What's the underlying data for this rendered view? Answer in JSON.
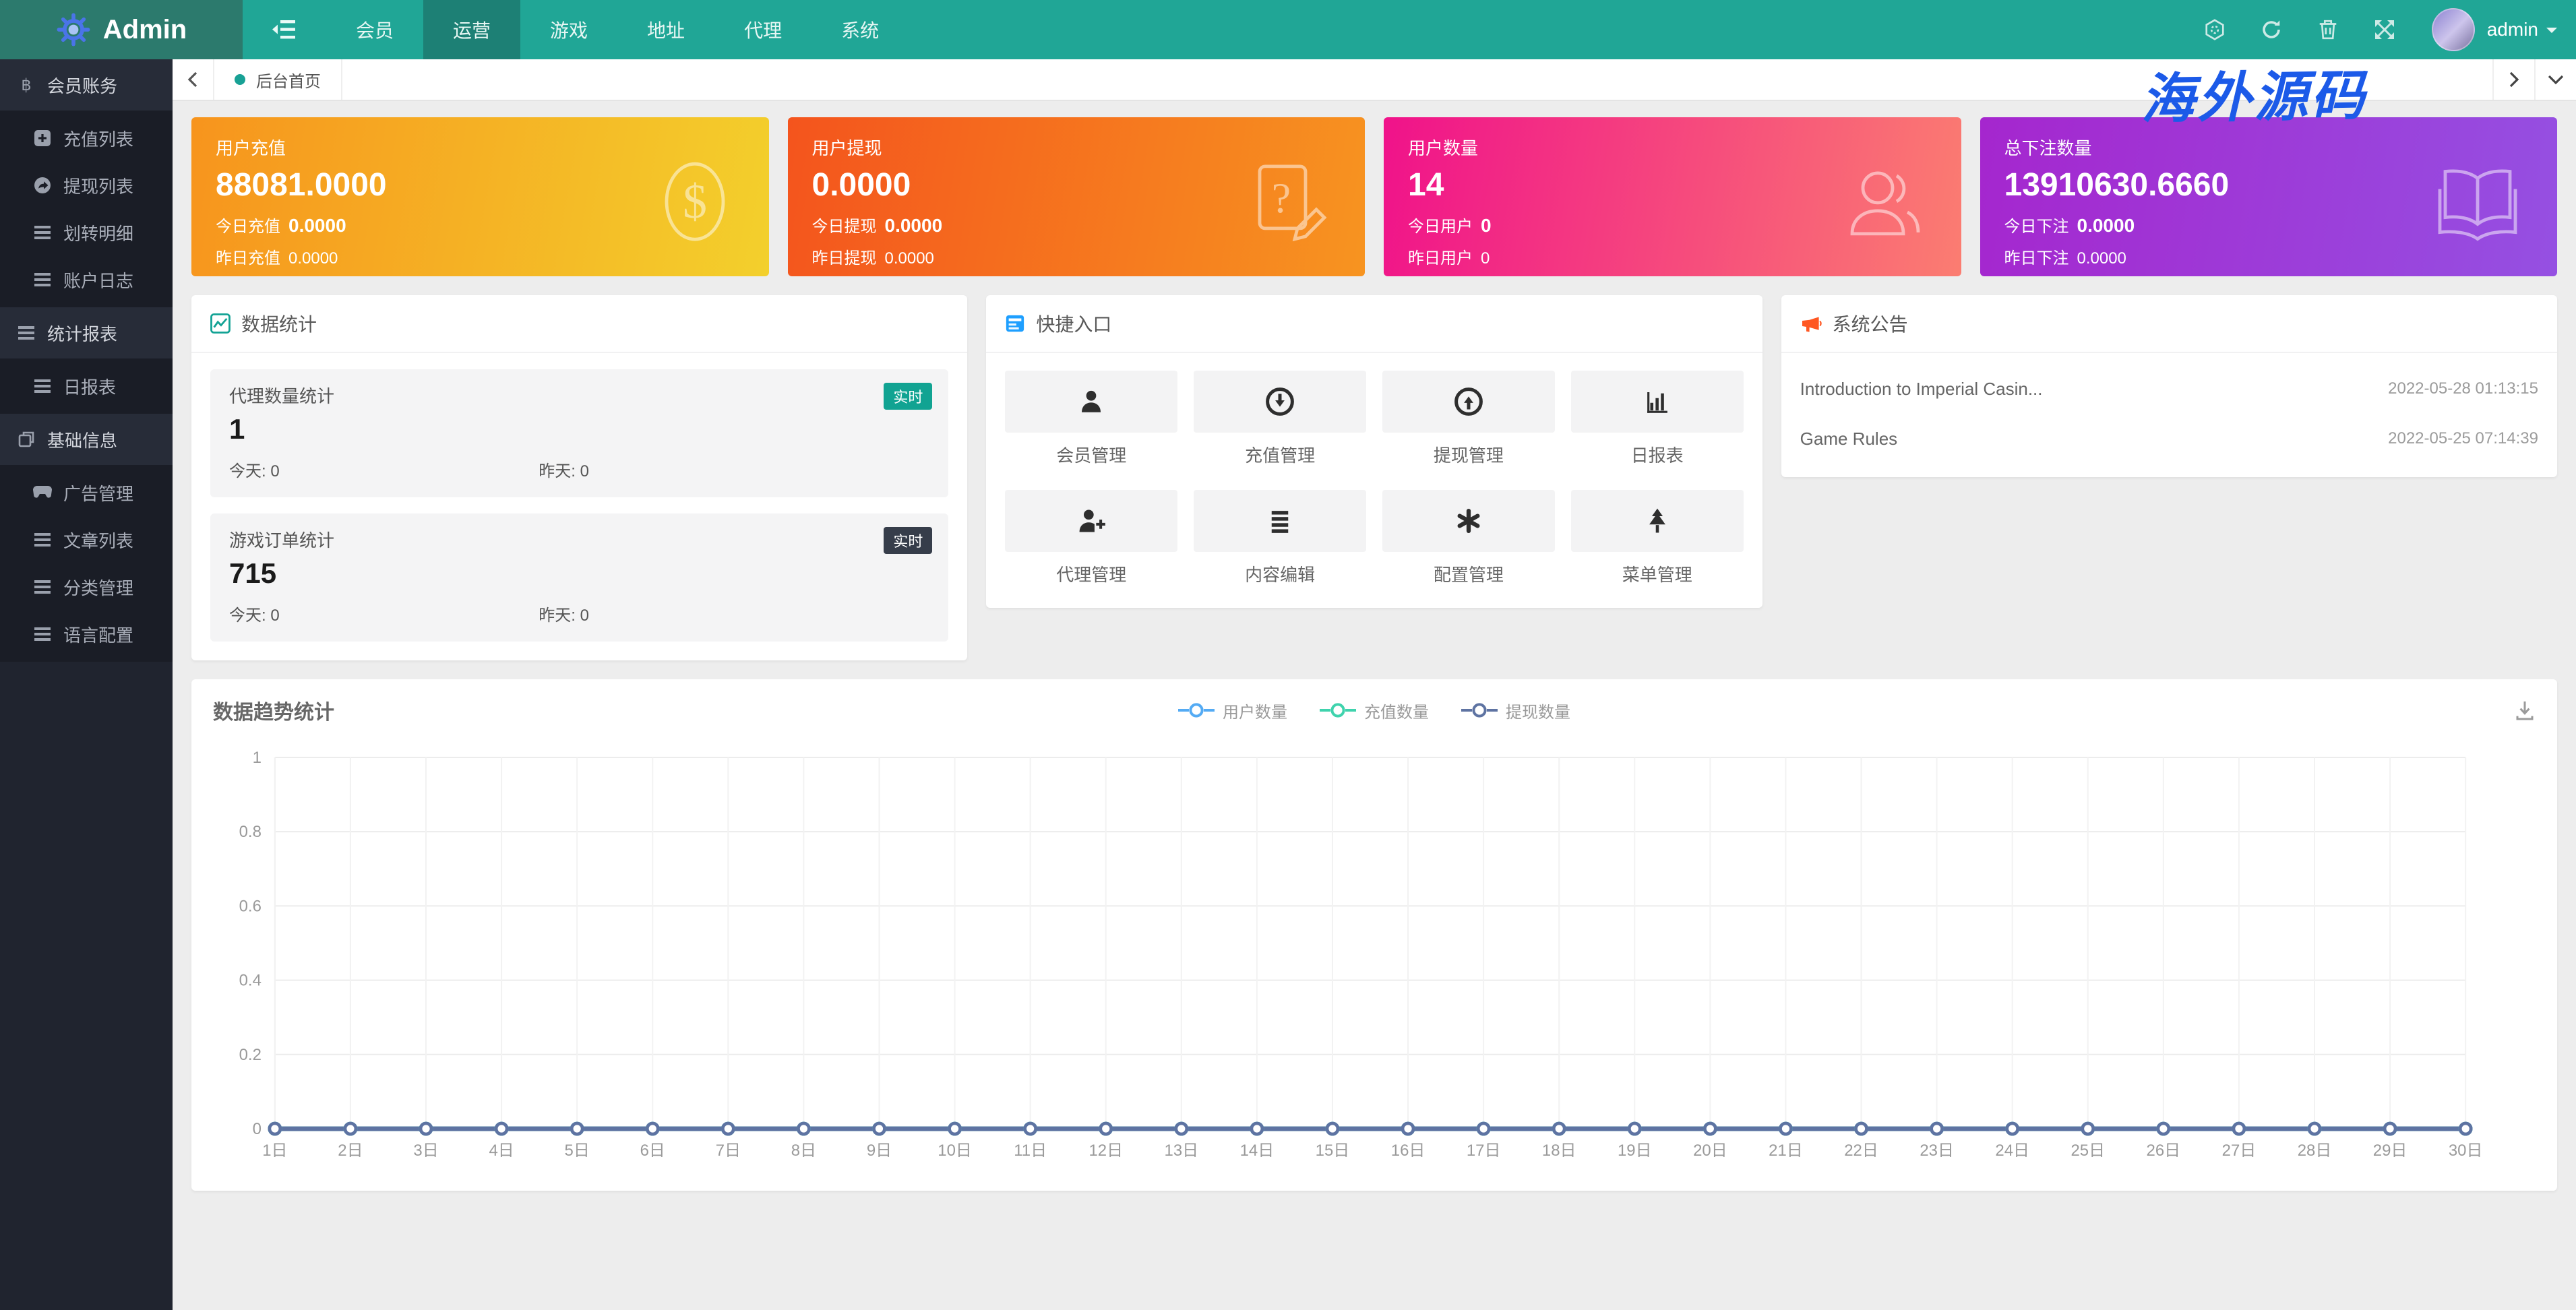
{
  "navbar": {
    "brand": "Admin",
    "menu": [
      "会员",
      "运营",
      "游戏",
      "地址",
      "代理",
      "系统"
    ],
    "active": "运营",
    "username": "admin"
  },
  "tabbar": {
    "tab": "后台首页"
  },
  "sidebar": {
    "groups": [
      {
        "label": "会员账务",
        "icon": "bitcoin-icon",
        "children": [
          {
            "label": "充值列表",
            "icon": "plus-square-icon"
          },
          {
            "label": "提现列表",
            "icon": "share-icon"
          },
          {
            "label": "划转明细",
            "icon": "list-icon"
          },
          {
            "label": "账户日志",
            "icon": "list-icon"
          }
        ]
      },
      {
        "label": "统计报表",
        "icon": "list-icon",
        "children": [
          {
            "label": "日报表",
            "icon": "list-icon"
          }
        ]
      },
      {
        "label": "基础信息",
        "icon": "copy-icon",
        "children": [
          {
            "label": "广告管理",
            "icon": "gamepad-icon"
          },
          {
            "label": "文章列表",
            "icon": "list-icon"
          },
          {
            "label": "分类管理",
            "icon": "list-icon"
          },
          {
            "label": "语言配置",
            "icon": "list-icon"
          }
        ]
      }
    ]
  },
  "stat_cards": [
    {
      "title": "用户充值",
      "value": "88081.0000",
      "row1_label": "今日充值",
      "row1_value": "0.0000",
      "row2_label": "昨日充值",
      "row2_value": "0.0000",
      "icon": "dollar-coin-icon",
      "gradient": [
        "#f7941d",
        "#f3d02c"
      ]
    },
    {
      "title": "用户提现",
      "value": "0.0000",
      "row1_label": "今日提现",
      "row1_value": "0.0000",
      "row2_label": "昨日提现",
      "row2_value": "0.0000",
      "icon": "file-question-icon",
      "gradient": [
        "#f4541d",
        "#f79420"
      ]
    },
    {
      "title": "用户数量",
      "value": "14",
      "row1_label": "今日用户",
      "row1_value": "0",
      "row2_label": "昨日用户",
      "row2_value": "0",
      "icon": "users-icon",
      "gradient": [
        "#f0128a",
        "#fb7d71"
      ]
    },
    {
      "title": "总下注数量",
      "value": "13910630.6660",
      "row1_label": "今日下注",
      "row1_value": "0.0000",
      "row2_label": "昨日下注",
      "row2_value": "0.0000",
      "icon": "book-icon",
      "gradient": [
        "#a526ce",
        "#9550e2"
      ]
    }
  ],
  "data_stats": {
    "title": "数据统计",
    "cards": [
      {
        "label": "代理数量统计",
        "badge": "实时",
        "badge_color": "#11a392",
        "value": "1",
        "today_label": "今天:",
        "today_value": "0",
        "yest_label": "昨天:",
        "yest_value": "0"
      },
      {
        "label": "游戏订单统计",
        "badge": "实时",
        "badge_color": "#363d4a",
        "value": "715",
        "today_label": "今天:",
        "today_value": "0",
        "yest_label": "昨天:",
        "yest_value": "0"
      }
    ]
  },
  "quick_entry": {
    "title": "快捷入口",
    "items": [
      {
        "label": "会员管理",
        "icon": "user-icon"
      },
      {
        "label": "充值管理",
        "icon": "circle-arrow-down-icon"
      },
      {
        "label": "提现管理",
        "icon": "circle-arrow-up-icon"
      },
      {
        "label": "日报表",
        "icon": "bar-chart-icon"
      },
      {
        "label": "代理管理",
        "icon": "user-plus-icon"
      },
      {
        "label": "内容编辑",
        "icon": "lines-icon"
      },
      {
        "label": "配置管理",
        "icon": "asterisk-icon"
      },
      {
        "label": "菜单管理",
        "icon": "tree-icon"
      }
    ]
  },
  "announcements": {
    "title": "系统公告",
    "items": [
      {
        "text": "Introduction to Imperial Casin...",
        "time": "2022-05-28 01:13:15"
      },
      {
        "text": "Game Rules",
        "time": "2022-05-25 07:14:39"
      }
    ]
  },
  "watermark": "海外源码",
  "chart_data": {
    "type": "line",
    "title": "数据趋势统计",
    "x": [
      "1日",
      "2日",
      "3日",
      "4日",
      "5日",
      "6日",
      "7日",
      "8日",
      "9日",
      "10日",
      "11日",
      "12日",
      "13日",
      "14日",
      "15日",
      "16日",
      "17日",
      "18日",
      "19日",
      "20日",
      "21日",
      "22日",
      "23日",
      "24日",
      "25日",
      "26日",
      "27日",
      "28日",
      "29日",
      "30日"
    ],
    "ylim": [
      0,
      1
    ],
    "yticks": [
      0,
      0.2,
      0.4,
      0.6,
      0.8,
      1
    ],
    "grid": true,
    "legend_position": "top-center",
    "series": [
      {
        "name": "用户数量",
        "color": "#54abf4",
        "values": [
          0,
          0,
          0,
          0,
          0,
          0,
          0,
          0,
          0,
          0,
          0,
          0,
          0,
          0,
          0,
          0,
          0,
          0,
          0,
          0,
          0,
          0,
          0,
          0,
          0,
          0,
          0,
          0,
          0,
          0
        ]
      },
      {
        "name": "充值数量",
        "color": "#3fd3ad",
        "values": [
          0,
          0,
          0,
          0,
          0,
          0,
          0,
          0,
          0,
          0,
          0,
          0,
          0,
          0,
          0,
          0,
          0,
          0,
          0,
          0,
          0,
          0,
          0,
          0,
          0,
          0,
          0,
          0,
          0,
          0
        ]
      },
      {
        "name": "提现数量",
        "color": "#5e73a2",
        "values": [
          0,
          0,
          0,
          0,
          0,
          0,
          0,
          0,
          0,
          0,
          0,
          0,
          0,
          0,
          0,
          0,
          0,
          0,
          0,
          0,
          0,
          0,
          0,
          0,
          0,
          0,
          0,
          0,
          0,
          0
        ]
      }
    ]
  }
}
